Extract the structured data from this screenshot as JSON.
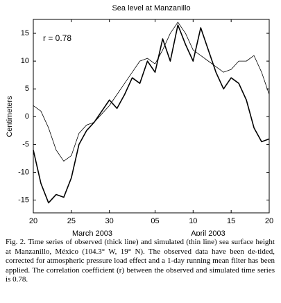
{
  "chart_data": {
    "type": "line",
    "title": "Sea level at Manzanillo",
    "ylabel": "Centimeters",
    "annotations": [
      "r = 0.78",
      "March 2003",
      "April 2003"
    ],
    "x": [
      "2003-03-20",
      "2003-03-21",
      "2003-03-22",
      "2003-03-23",
      "2003-03-24",
      "2003-03-25",
      "2003-03-26",
      "2003-03-27",
      "2003-03-28",
      "2003-03-29",
      "2003-03-30",
      "2003-03-31",
      "2003-04-01",
      "2003-04-02",
      "2003-04-03",
      "2003-04-04",
      "2003-04-05",
      "2003-04-06",
      "2003-04-07",
      "2003-04-08",
      "2003-04-09",
      "2003-04-10",
      "2003-04-11",
      "2003-04-12",
      "2003-04-13",
      "2003-04-14",
      "2003-04-15",
      "2003-04-16",
      "2003-04-17",
      "2003-04-18",
      "2003-04-19",
      "2003-04-20"
    ],
    "series": [
      {
        "color": "#000000",
        "width": 1.6,
        "values": [
          -6,
          -12,
          -15.5,
          -14,
          -14.5,
          -11,
          -5,
          -2.5,
          -1,
          1,
          3,
          1.5,
          4,
          7,
          6,
          10,
          8,
          14,
          10,
          16.5,
          13,
          10,
          16,
          12,
          8,
          5,
          7,
          6,
          3,
          -2,
          -4.5,
          -4
        ]
      },
      {
        "color": "#000000",
        "width": 0.8,
        "values": [
          2,
          1,
          -2,
          -6,
          -8,
          -7,
          -3,
          -1.5,
          -1,
          0.5,
          2,
          4,
          6,
          8,
          10,
          10.5,
          9.5,
          12,
          15,
          17,
          15,
          12,
          11,
          10,
          9,
          8,
          8.5,
          10,
          10,
          11,
          8,
          4
        ]
      }
    ],
    "xlim": [
      "2003-03-20",
      "2003-04-20"
    ],
    "xticks": [
      {
        "value": "2003-03-20",
        "label": "20"
      },
      {
        "value": "2003-03-25",
        "label": "25"
      },
      {
        "value": "2003-03-30",
        "label": "30"
      },
      {
        "value": "2003-04-05",
        "label": "05"
      },
      {
        "value": "2003-04-10",
        "label": "10"
      },
      {
        "value": "2003-04-15",
        "label": "15"
      },
      {
        "value": "2003-04-20",
        "label": "20"
      }
    ],
    "ylim": [
      -17.3,
      17.5
    ],
    "yticks": [
      -15,
      -10,
      -5,
      0,
      5,
      10,
      15
    ]
  },
  "caption": "Fig. 2. Time series of observed (thick line) and simulated (thin line) sea surface height at Manzanillo, México (104.3° W, 19° N). The observed data have been de-tided, corrected for atmospheric pressure load effect and a 1-day running mean filter has been applied. The correlation coefficient (r) between the observed and simulated time series is 0.78."
}
